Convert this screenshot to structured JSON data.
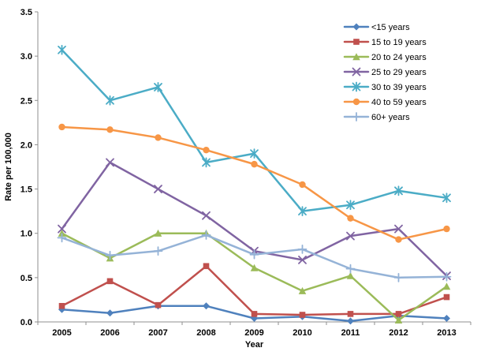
{
  "chart_data": {
    "type": "line",
    "title": "",
    "xlabel": "Year",
    "ylabel": "Rate per 100,000",
    "ylim": [
      0,
      3.5
    ],
    "ytick_step": 0.5,
    "grid": false,
    "legend_position": "top-right-inside",
    "axis_color": "#8f8f8f",
    "text_color": "#000000",
    "categories": [
      "2005",
      "2006",
      "2007",
      "2008",
      "2009",
      "2010",
      "2011",
      "2012",
      "2013"
    ],
    "series": [
      {
        "name": "<15 years",
        "color": "#4F81BD",
        "marker": "diamond",
        "values": [
          0.14,
          0.1,
          0.18,
          0.18,
          0.04,
          0.06,
          0.01,
          0.07,
          0.04
        ]
      },
      {
        "name": "15 to 19 years",
        "color": "#C0504D",
        "marker": "square",
        "values": [
          0.18,
          0.46,
          0.19,
          0.63,
          0.09,
          0.08,
          0.09,
          0.09,
          0.28
        ]
      },
      {
        "name": "20 to 24 years",
        "color": "#9BBB59",
        "marker": "triangle",
        "values": [
          1.0,
          0.72,
          1.0,
          1.0,
          0.61,
          0.35,
          0.52,
          0.02,
          0.4
        ]
      },
      {
        "name": "25 to 29 years",
        "color": "#8064A2",
        "marker": "x",
        "values": [
          1.05,
          1.8,
          1.5,
          1.2,
          0.8,
          0.7,
          0.97,
          1.05,
          0.52
        ]
      },
      {
        "name": "30 to 39 years",
        "color": "#4BACC6",
        "marker": "asterisk",
        "values": [
          3.07,
          2.5,
          2.65,
          1.8,
          1.9,
          1.25,
          1.32,
          1.48,
          1.4
        ]
      },
      {
        "name": "40 to 59 years",
        "color": "#F79646",
        "marker": "circle",
        "values": [
          2.2,
          2.17,
          2.08,
          1.94,
          1.78,
          1.55,
          1.17,
          0.93,
          1.05
        ]
      },
      {
        "name": "60+ years",
        "color": "#95B3D7",
        "marker": "plus",
        "values": [
          0.95,
          0.75,
          0.8,
          0.98,
          0.76,
          0.82,
          0.6,
          0.5,
          0.51
        ]
      }
    ]
  }
}
